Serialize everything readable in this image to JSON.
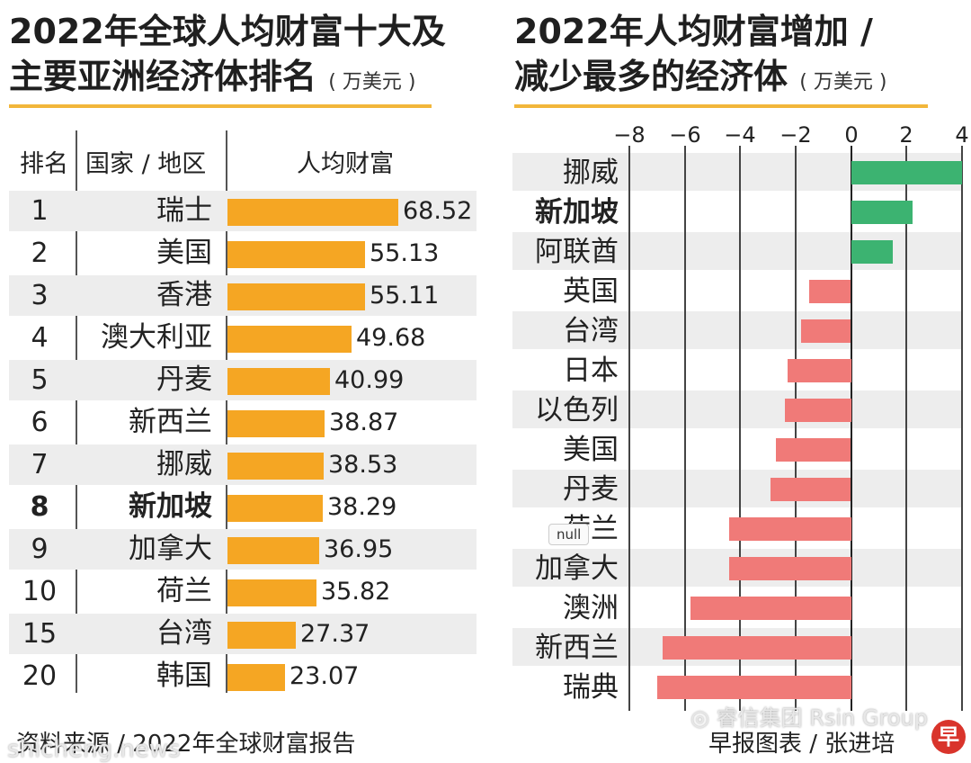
{
  "left": {
    "title_line1": "2022年全球人均财富十大及",
    "title_line2": "主要亚洲经济体排名",
    "unit": "( 万美元 )",
    "header": {
      "rank": "排名",
      "region": "国家 / 地区",
      "wealth": "人均财富"
    }
  },
  "right": {
    "title_line1": "2022年人均财富增加 /",
    "title_line2": "减少最多的经济体",
    "unit": "( 万美元 )"
  },
  "footer": {
    "source": "资料来源 / 2022年全球财富报告",
    "credit": "早报图表 / 张进培",
    "watermark_left": "shicheng.news",
    "watermark_right": "睿信集团 Rsin Group",
    "tooltip": "null"
  },
  "colors": {
    "orange": "#f5a623",
    "green": "#3cb371",
    "red": "#f07a78",
    "rule": "#f2b63a"
  },
  "chart_data": [
    {
      "type": "table",
      "columns": [
        "排名",
        "国家 / 地区",
        "人均财富"
      ],
      "rows": [
        {
          "rank": "1",
          "name": "瑞士",
          "value": 68.52
        },
        {
          "rank": "2",
          "name": "美国",
          "value": 55.13
        },
        {
          "rank": "3",
          "name": "香港",
          "value": 55.11
        },
        {
          "rank": "4",
          "name": "澳大利亚",
          "value": 49.68
        },
        {
          "rank": "5",
          "name": "丹麦",
          "value": 40.99
        },
        {
          "rank": "6",
          "name": "新西兰",
          "value": 38.87
        },
        {
          "rank": "7",
          "name": "挪威",
          "value": 38.53
        },
        {
          "rank": "8",
          "name": "新加坡",
          "value": 38.29,
          "highlight": true
        },
        {
          "rank": "9",
          "name": "加拿大",
          "value": 36.95
        },
        {
          "rank": "10",
          "name": "荷兰",
          "value": 35.82
        },
        {
          "rank": "15",
          "name": "台湾",
          "value": 27.37
        },
        {
          "rank": "20",
          "name": "韩国",
          "value": 23.07
        }
      ]
    },
    {
      "type": "bar",
      "orientation": "horizontal",
      "xlim": [
        -8,
        4
      ],
      "xticks": [
        "−8",
        "−6",
        "−4",
        "−2",
        "0",
        "2",
        "4"
      ],
      "categories": [
        "挪威",
        "新加坡",
        "阿联酋",
        "英国",
        "台湾",
        "日本",
        "以色列",
        "美国",
        "丹麦",
        "荷兰",
        "加拿大",
        "澳洲",
        "新西兰",
        "瑞典"
      ],
      "highlight": "新加坡",
      "values": [
        4.0,
        2.2,
        1.5,
        -1.5,
        -1.8,
        -2.3,
        -2.4,
        -2.7,
        -2.9,
        -4.4,
        -4.4,
        -5.8,
        -6.8,
        -7.0
      ]
    }
  ]
}
